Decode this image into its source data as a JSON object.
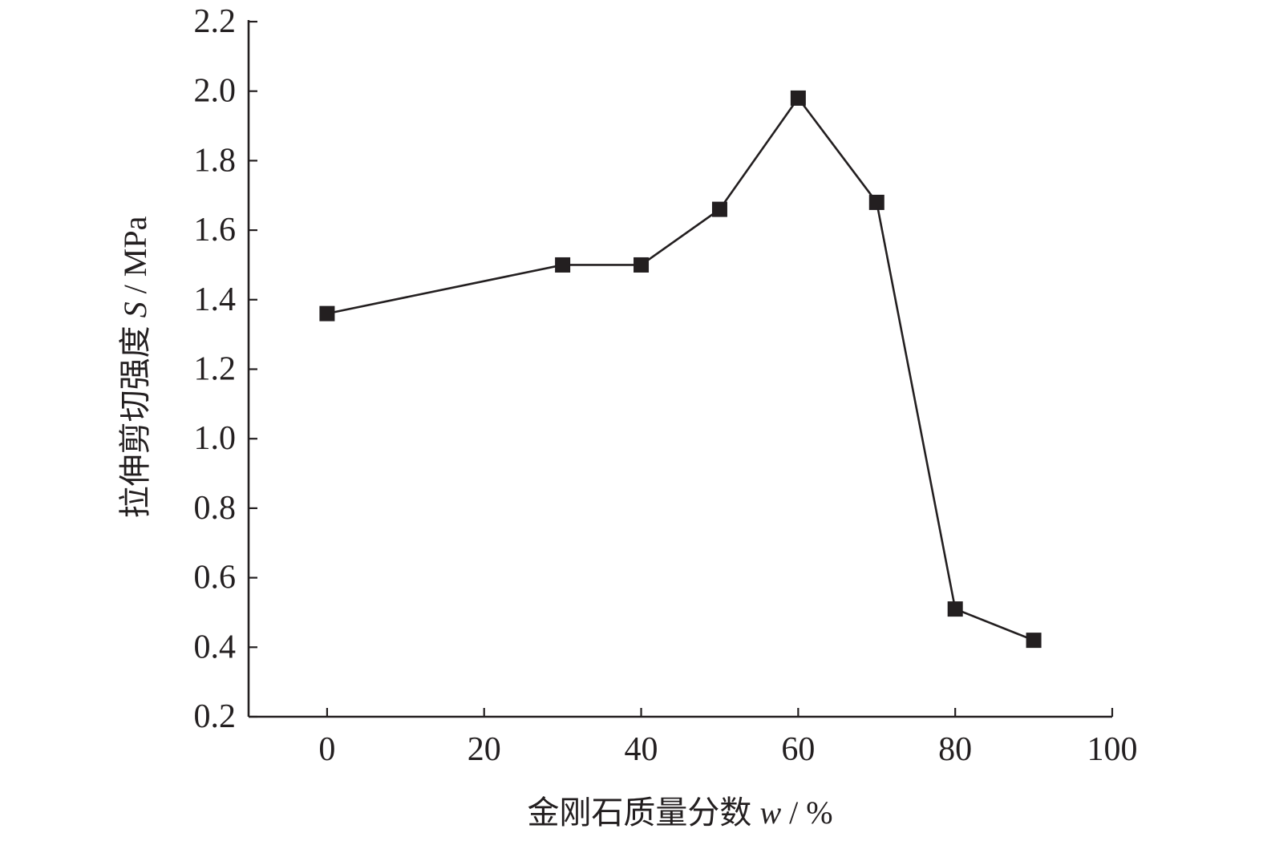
{
  "chart_data": {
    "type": "line",
    "title": "",
    "xlabel": {
      "prefix": "金刚石质量分数 ",
      "symbol": "w",
      "suffix": " / %"
    },
    "ylabel": {
      "prefix": "拉伸剪切强度 ",
      "symbol": "S",
      "suffix": " / MPa"
    },
    "xlim": [
      -10,
      100
    ],
    "ylim": [
      0.2,
      2.2
    ],
    "xticks": [
      0,
      20,
      40,
      60,
      80,
      100
    ],
    "yticks": [
      0.2,
      0.4,
      0.6,
      0.8,
      1.0,
      1.2,
      1.4,
      1.6,
      1.8,
      2.0,
      2.2
    ],
    "ytick_labels": [
      "0.2",
      "0.4",
      "0.6",
      "0.8",
      "1.0",
      "1.2",
      "1.4",
      "1.6",
      "1.8",
      "2.0",
      "2.2"
    ],
    "grid": false,
    "legend": "none",
    "series": [
      {
        "marker": "filled-square",
        "color": "#231f20",
        "x": [
          0,
          30,
          40,
          50,
          60,
          70,
          80,
          90
        ],
        "y": [
          1.36,
          1.5,
          1.5,
          1.66,
          1.98,
          1.68,
          0.51,
          0.42
        ]
      }
    ]
  }
}
